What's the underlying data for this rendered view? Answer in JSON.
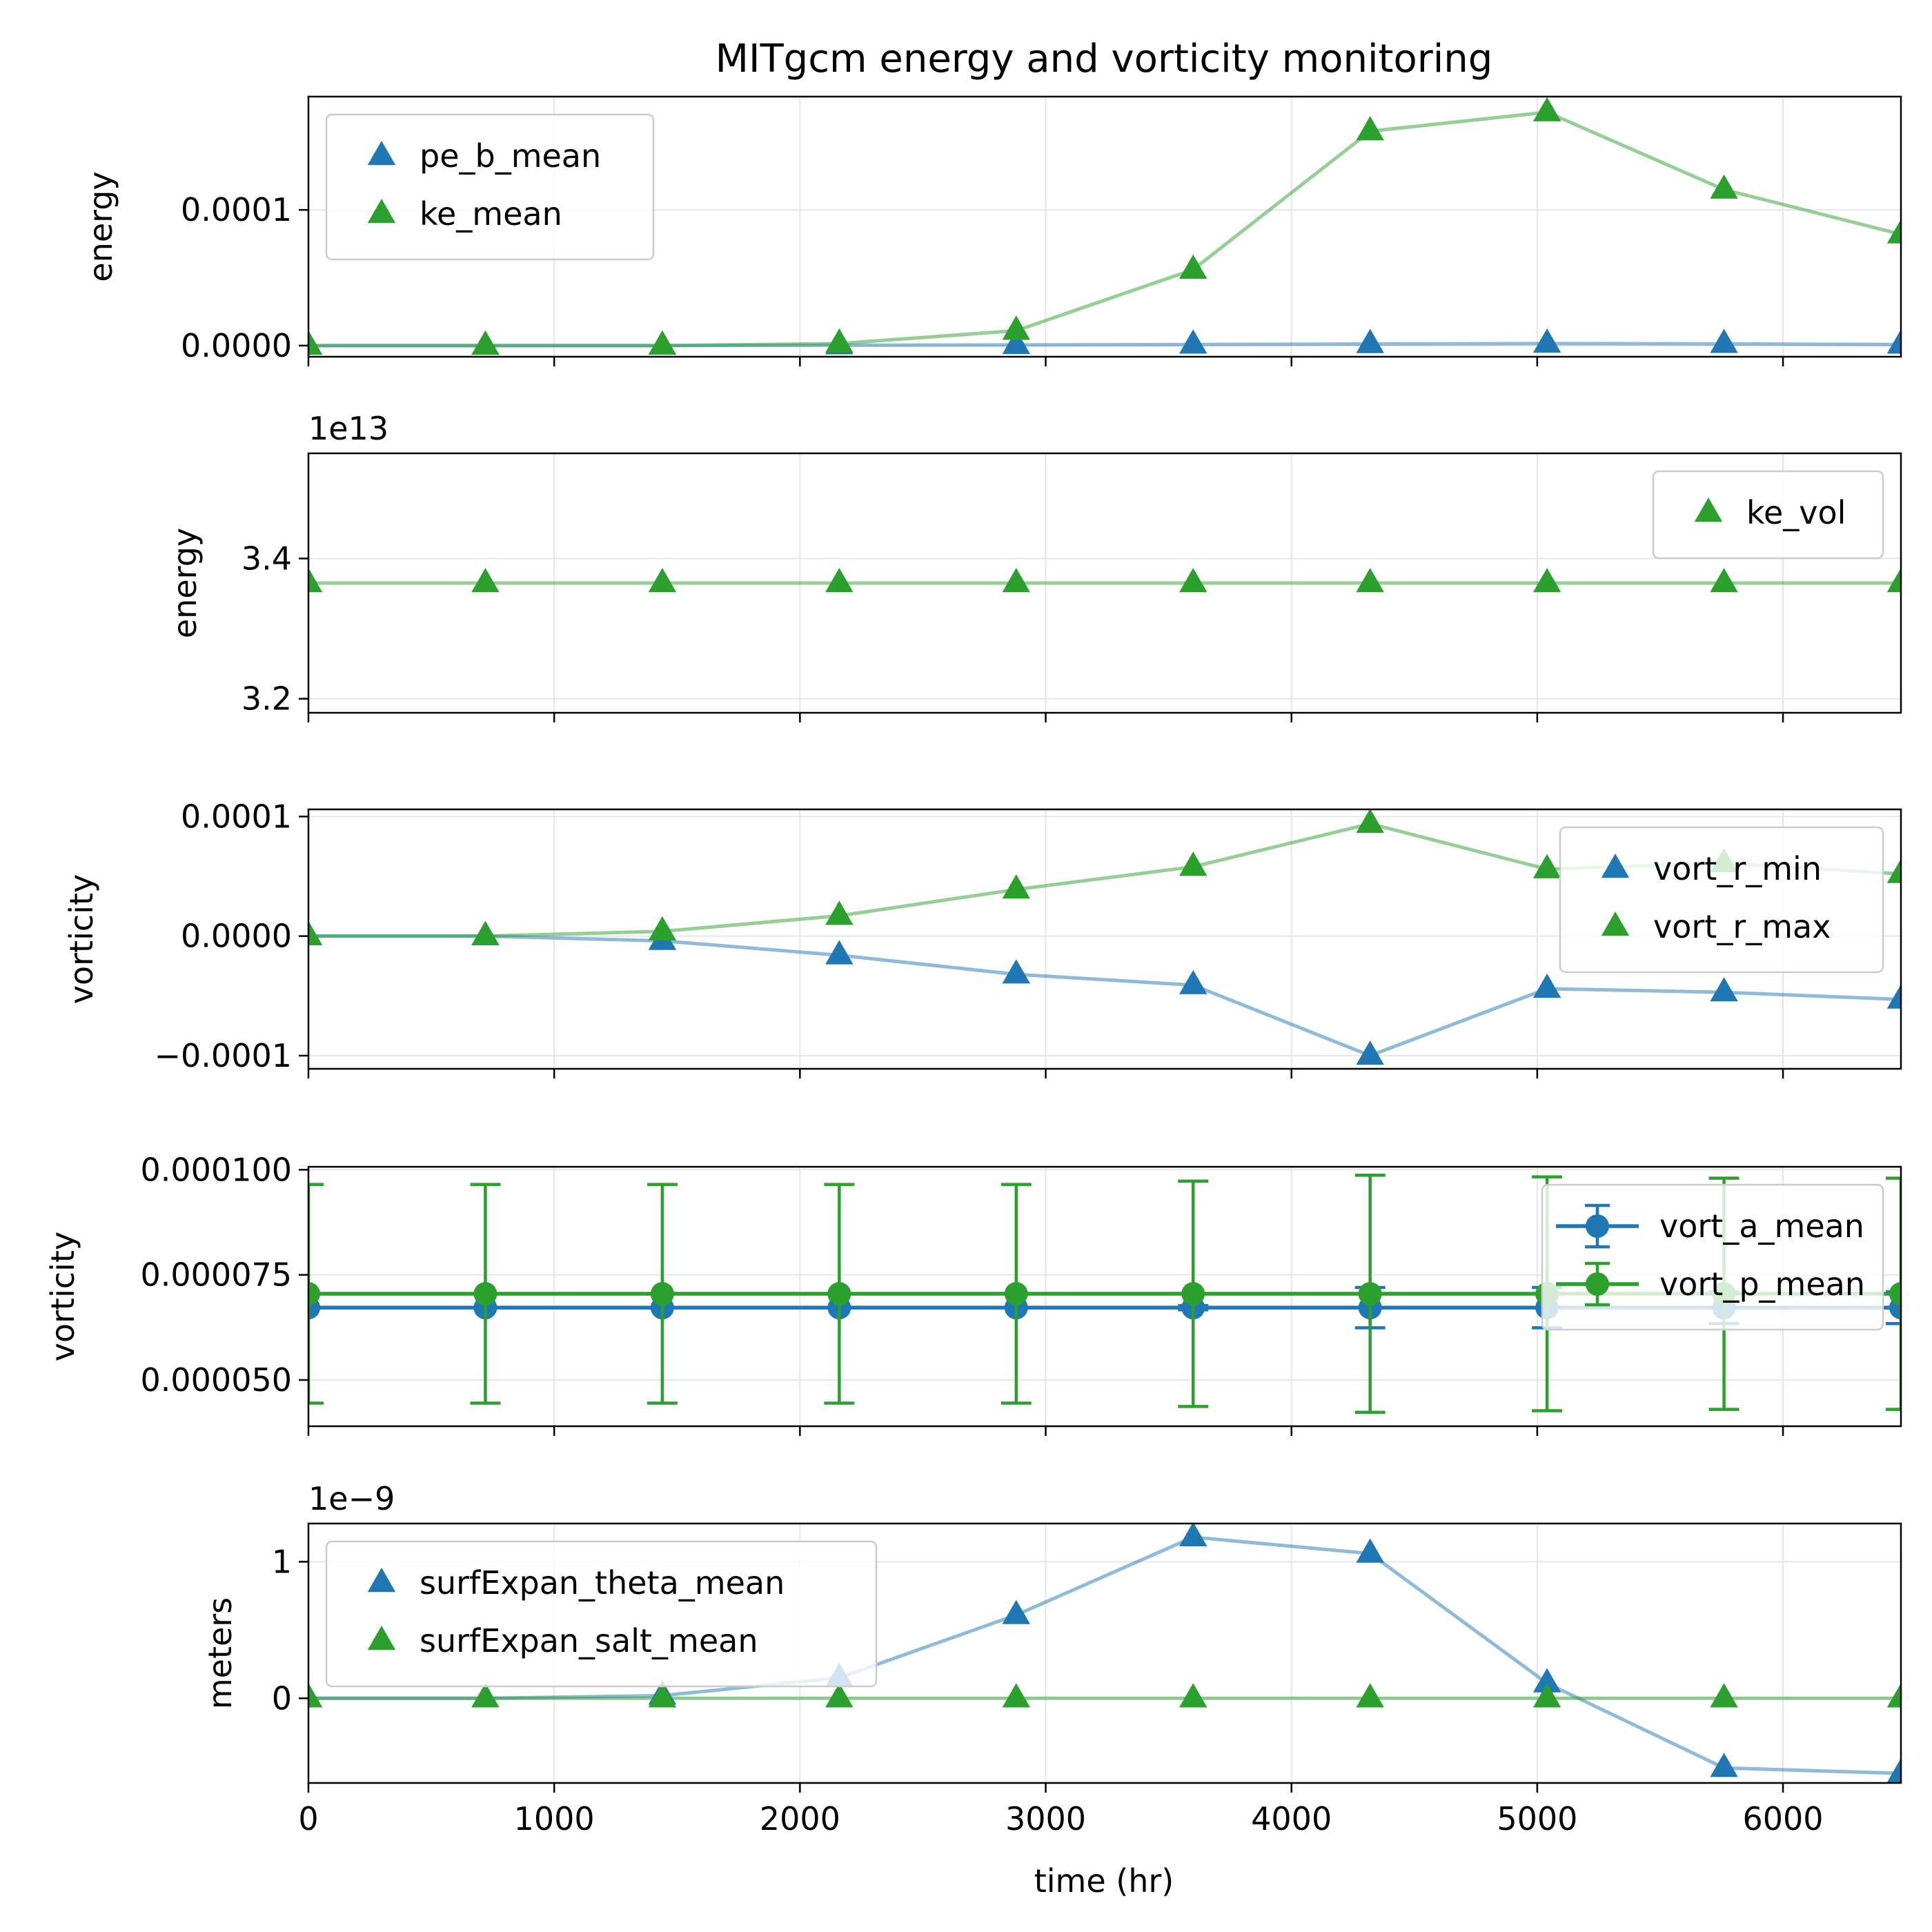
{
  "figure": {
    "title": "MITgcm energy and vorticity monitoring",
    "xlabel": "time (hr)",
    "x_ticks": [
      0,
      1000,
      2000,
      3000,
      4000,
      5000,
      6000
    ],
    "x_tick_labels": [
      "0",
      "1000",
      "2000",
      "3000",
      "4000",
      "5000",
      "6000"
    ],
    "xlim": [
      0,
      6480
    ]
  },
  "colors": {
    "blue": "#1f77b4",
    "green": "#2ca02c",
    "grid": "#e6e6e6",
    "axes": "#000000",
    "legend_border": "#cccccc"
  },
  "chart_data": [
    {
      "type": "line",
      "title": "MITgcm energy and vorticity monitoring",
      "xlabel": "",
      "ylabel": "energy",
      "offset_text": "",
      "ylim": [
        -8.2e-06,
        0.0001835
      ],
      "y_ticks": [
        0,
        0.0001
      ],
      "y_tick_labels": [
        "0.0000",
        "0.0001"
      ],
      "grid": true,
      "legend_position": "upper left",
      "x": [
        0,
        720,
        1440,
        2160,
        2880,
        3600,
        4320,
        5040,
        5760,
        6480
      ],
      "series": [
        {
          "name": "pe_b_mean",
          "color": "#1f77b4",
          "marker": "triangle",
          "values": [
            0,
            0,
            0,
            3e-07,
            5e-07,
            8e-07,
            1.2e-06,
            1.5e-06,
            1.3e-06,
            8e-07
          ]
        },
        {
          "name": "ke_mean",
          "color": "#2ca02c",
          "marker": "triangle",
          "values": [
            0,
            0,
            0,
            1.5e-06,
            1.1e-05,
            5.6e-05,
            0.000158,
            0.000172,
            0.000115,
            8.2e-05
          ]
        }
      ]
    },
    {
      "type": "line",
      "xlabel": "",
      "ylabel": "energy",
      "offset_text": "1e13",
      "ylim": [
        3.18,
        3.55
      ],
      "y_ticks": [
        3.2,
        3.4
      ],
      "y_tick_labels": [
        "3.2",
        "3.4"
      ],
      "grid": true,
      "legend_position": "upper right",
      "x": [
        0,
        720,
        1440,
        2160,
        2880,
        3600,
        4320,
        5040,
        5760,
        6480
      ],
      "series": [
        {
          "name": "ke_vol",
          "color": "#2ca02c",
          "marker": "triangle",
          "values": [
            3.365,
            3.365,
            3.365,
            3.365,
            3.365,
            3.365,
            3.365,
            3.365,
            3.365,
            3.365
          ]
        }
      ]
    },
    {
      "type": "line",
      "xlabel": "",
      "ylabel": "vorticity",
      "offset_text": "",
      "ylim": [
        -0.000111,
        0.000106
      ],
      "y_ticks": [
        -0.0001,
        0,
        0.0001
      ],
      "y_tick_labels": [
        "−0.0001",
        "0.0000",
        "0.0001"
      ],
      "grid": true,
      "legend_position": "upper right",
      "x": [
        0,
        720,
        1440,
        2160,
        2880,
        3600,
        4320,
        5040,
        5760,
        6480
      ],
      "series": [
        {
          "name": "vort_r_min",
          "color": "#1f77b4",
          "marker": "triangle",
          "values": [
            0,
            0,
            -4e-06,
            -1.6e-05,
            -3.2e-05,
            -4.1e-05,
            -0.0001,
            -4.4e-05,
            -4.7e-05,
            -5.3e-05
          ]
        },
        {
          "name": "vort_r_max",
          "color": "#2ca02c",
          "marker": "triangle",
          "values": [
            0,
            0,
            4e-06,
            1.7e-05,
            3.9e-05,
            5.8e-05,
            9.4e-05,
            5.6e-05,
            6.1e-05,
            5.2e-05
          ]
        }
      ]
    },
    {
      "type": "line",
      "xlabel": "",
      "ylabel": "vorticity",
      "offset_text": "",
      "ylim": [
        3.9e-05,
        0.0001007
      ],
      "y_ticks": [
        5e-05,
        7.5e-05,
        0.0001
      ],
      "y_tick_labels": [
        "0.000050",
        "0.000075",
        "0.000100"
      ],
      "grid": true,
      "legend_position": "upper right",
      "x": [
        0,
        720,
        1440,
        2160,
        2880,
        3600,
        4320,
        5040,
        5760,
        6480
      ],
      "series": [
        {
          "name": "vort_a_mean",
          "color": "#1f77b4",
          "marker": "circle",
          "values": [
            6.72e-05,
            6.72e-05,
            6.72e-05,
            6.72e-05,
            6.72e-05,
            6.72e-05,
            6.72e-05,
            6.72e-05,
            6.72e-05,
            6.72e-05
          ],
          "error": [
            0,
            0,
            0,
            0,
            0,
            5e-07,
            4.8e-06,
            4.8e-06,
            3.8e-06,
            3.8e-06
          ]
        },
        {
          "name": "vort_p_mean",
          "color": "#2ca02c",
          "marker": "circle",
          "values": [
            7.05e-05,
            7.05e-05,
            7.05e-05,
            7.05e-05,
            7.05e-05,
            7.05e-05,
            7.05e-05,
            7.05e-05,
            7.05e-05,
            7.05e-05
          ],
          "error": [
            2.6e-05,
            2.6e-05,
            2.6e-05,
            2.6e-05,
            2.6e-05,
            2.68e-05,
            2.82e-05,
            2.78e-05,
            2.75e-05,
            2.75e-05
          ]
        }
      ]
    },
    {
      "type": "line",
      "xlabel": "time (hr)",
      "ylabel": "meters",
      "offset_text": "1e−9",
      "ylim": [
        -0.62,
        1.28
      ],
      "y_ticks": [
        0,
        1
      ],
      "y_tick_labels": [
        "0",
        "1"
      ],
      "grid": true,
      "legend_position": "upper left",
      "x": [
        0,
        720,
        1440,
        2160,
        2880,
        3600,
        4320,
        5040,
        5760,
        6480
      ],
      "series": [
        {
          "name": "surfExpan_theta_mean",
          "color": "#1f77b4",
          "marker": "triangle",
          "values": [
            0,
            0,
            0.02,
            0.15,
            0.61,
            1.18,
            1.06,
            0.11,
            -0.51,
            -0.55
          ]
        },
        {
          "name": "surfExpan_salt_mean",
          "color": "#2ca02c",
          "marker": "triangle",
          "values": [
            0,
            0,
            0,
            0,
            0,
            0,
            0,
            0,
            0,
            0
          ]
        }
      ]
    }
  ]
}
